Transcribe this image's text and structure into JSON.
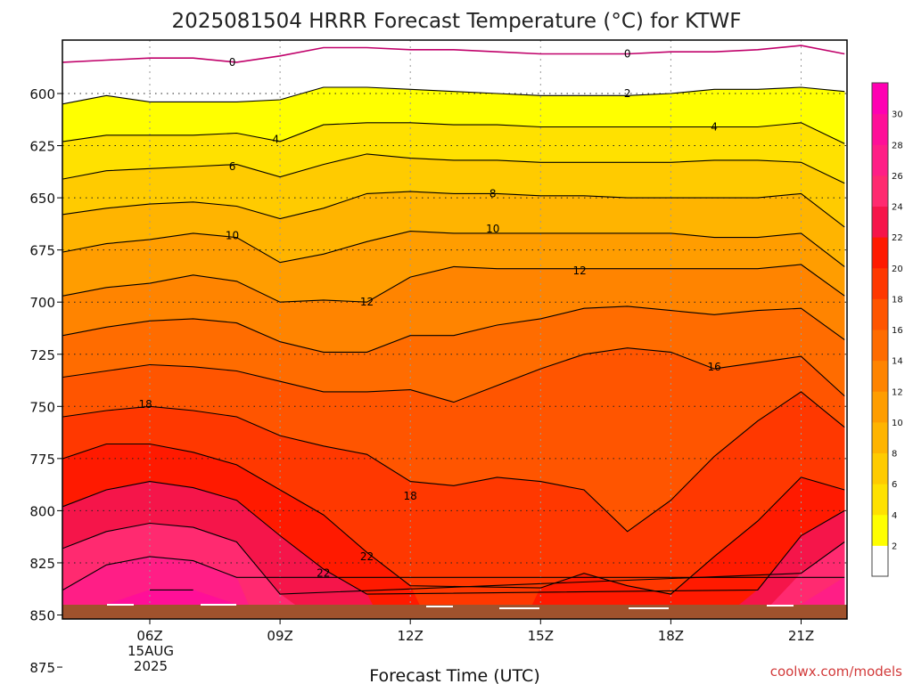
{
  "chart_data": {
    "type": "heatmap",
    "title": "2025081504 HRRR Forecast Temperature (°C) for KTWF",
    "xlabel": "Forecast Time (UTC)",
    "ylabel": "",
    "x_ticks": [
      "06Z",
      "09Z",
      "12Z",
      "15Z",
      "18Z",
      "21Z"
    ],
    "x_date_label": [
      "15AUG",
      "2025"
    ],
    "y_ticks": [
      600,
      625,
      650,
      675,
      700,
      725,
      750,
      775,
      800,
      825,
      850,
      875
    ],
    "y_scale": "inverted pressure (hPa)",
    "ylim": [
      578,
      880
    ],
    "grid": true,
    "colorbar": {
      "levels": [
        0,
        2,
        4,
        6,
        8,
        10,
        12,
        14,
        16,
        18,
        20,
        22,
        24,
        26,
        28,
        30,
        32
      ],
      "tick_labels": [
        "2",
        "4",
        "6",
        "8",
        "10",
        "12",
        "14",
        "16",
        "18",
        "20",
        "22",
        "24",
        "26",
        "28",
        "30"
      ],
      "colors": [
        "#ffffff",
        "#ffff00",
        "#ffe100",
        "#ffcb00",
        "#ffb400",
        "#ff9d00",
        "#ff8400",
        "#ff6c00",
        "#ff5500",
        "#ff3800",
        "#ff1a00",
        "#f5154a",
        "#ff2a70",
        "#ff1e86",
        "#ff0f98",
        "#ff00b2"
      ]
    },
    "contour_labels": [
      {
        "time": 7.9,
        "pressure": 585,
        "text": "0"
      },
      {
        "time": 17.0,
        "pressure": 581,
        "text": "0"
      },
      {
        "time": 17.0,
        "pressure": 600,
        "text": "2"
      },
      {
        "time": 8.9,
        "pressure": 622,
        "text": "4"
      },
      {
        "time": 19.0,
        "pressure": 616,
        "text": "4"
      },
      {
        "time": 7.9,
        "pressure": 635,
        "text": "6"
      },
      {
        "time": 13.9,
        "pressure": 648,
        "text": "8"
      },
      {
        "time": 7.9,
        "pressure": 668,
        "text": "10"
      },
      {
        "time": 13.9,
        "pressure": 665,
        "text": "10"
      },
      {
        "time": 15.9,
        "pressure": 685,
        "text": "12"
      },
      {
        "time": 11.0,
        "pressure": 700,
        "text": "12"
      },
      {
        "time": 19.0,
        "pressure": 731,
        "text": "16"
      },
      {
        "time": 5.9,
        "pressure": 749,
        "text": "18"
      },
      {
        "time": 12.0,
        "pressure": 793,
        "text": "18"
      },
      {
        "time": 11.0,
        "pressure": 822,
        "text": "22"
      },
      {
        "time": 10.0,
        "pressure": 830,
        "text": "22"
      }
    ]
  },
  "credit": "coolwx.com/models",
  "colors": {
    "ground": "#a0522d",
    "contour": "#000000",
    "zero_contour": "#c0006a"
  }
}
